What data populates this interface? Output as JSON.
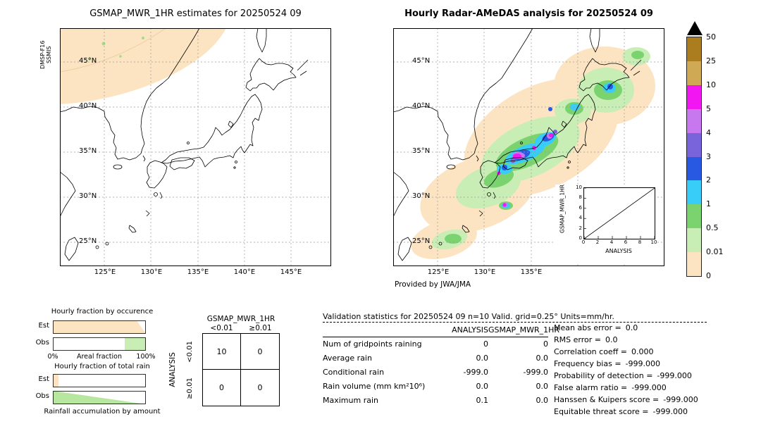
{
  "left_map": {
    "title": "GSMAP_MWR_1HR estimates for 20250524 09",
    "satellite": "DMSP-F16",
    "sensor": "SSMIS",
    "lat_labels": [
      "45°N",
      "40°N",
      "35°N",
      "30°N",
      "25°N"
    ],
    "lon_labels": [
      "125°E",
      "130°E",
      "135°E",
      "140°E",
      "145°E"
    ]
  },
  "right_map": {
    "title": "Hourly Radar-AMeDAS analysis for 20250524 09",
    "credit": "Provided by JWA/JMA",
    "lat_labels": [
      "45°N",
      "40°N",
      "35°N",
      "30°N",
      "25°N"
    ],
    "lon_labels": [
      "125°E",
      "130°E",
      "135°E"
    ],
    "inset": {
      "ylabel": "GSMAP_MWR_1HR",
      "xlabel": "ANALYSIS",
      "tick_labels": [
        "0",
        "2",
        "4",
        "6",
        "8",
        "10"
      ]
    }
  },
  "colorbar": {
    "tick_labels": [
      "50",
      "25",
      "10",
      "5",
      "4",
      "3",
      "2",
      "1",
      "0.5",
      "0.01",
      "0"
    ],
    "segment_colors": [
      "#ab7d1f",
      "#cfa954",
      "#f217f2",
      "#c878ee",
      "#7a64dc",
      "#2759e3",
      "#37cdf8",
      "#7bd36f",
      "#c8eeb6",
      "#fce4c2"
    ],
    "overflow_color": "#000000"
  },
  "fractions": {
    "occurrence_title": "Hourly fraction by occurence",
    "total_title": "Hourly fraction of total rain",
    "accumulation_title": "Rainfall accumulation by amount",
    "row_labels": [
      "Est",
      "Obs"
    ],
    "axis_min": "0%",
    "axis_label": "Areal fraction",
    "axis_max": "100%"
  },
  "contingency": {
    "title": "GSMAP_MWR_1HR",
    "side_label": "ANALYSIS",
    "col_labels": [
      "<0.01",
      "≥0.01"
    ],
    "row_labels": [
      "<0.01",
      "≥0.01"
    ],
    "cells": [
      [
        "10",
        "0"
      ],
      [
        "0",
        "0"
      ]
    ]
  },
  "stats": {
    "title": "Validation statistics for 20250524 09  n=10 Valid. grid=0.25° Units=mm/hr.",
    "col_headers": [
      "ANALYSIS",
      "GSMAP_MWR_1HR"
    ],
    "rows": [
      {
        "label": "Num of gridpoints raining",
        "analysis": "0",
        "gsmap": "0"
      },
      {
        "label": "Average rain",
        "analysis": "0.0",
        "gsmap": "0.0"
      },
      {
        "label": "Conditional rain",
        "analysis": "-999.0",
        "gsmap": "-999.0"
      },
      {
        "label": "Rain volume (mm km²10⁶)",
        "analysis": "0.0",
        "gsmap": "0.0"
      },
      {
        "label": "Maximum rain",
        "analysis": "0.1",
        "gsmap": "0.0"
      }
    ],
    "metrics": [
      {
        "label": "Mean abs error =",
        "value": "0.0"
      },
      {
        "label": "RMS error =",
        "value": "0.0"
      },
      {
        "label": "Correlation coeff =",
        "value": "0.000"
      },
      {
        "label": "Frequency bias =",
        "value": "-999.000"
      },
      {
        "label": "Probability of detection =",
        "value": "-999.000"
      },
      {
        "label": "False alarm ratio =",
        "value": "-999.000"
      },
      {
        "label": "Hanssen & Kuipers score =",
        "value": "-999.000"
      },
      {
        "label": "Equitable threat score =",
        "value": "-999.000"
      }
    ]
  },
  "chart_data": [
    {
      "type": "heatmap",
      "title": "GSMAP_MWR_1HR estimates for 20250524 09",
      "xticks": [
        "125°E",
        "130°E",
        "135°E",
        "140°E",
        "145°E"
      ],
      "yticks": [
        "45°N",
        "40°N",
        "35°N",
        "30°N",
        "25°N"
      ],
      "legend_units": "mm/hr",
      "legend_levels": [
        0,
        0.01,
        0.5,
        1,
        2,
        3,
        4,
        5,
        10,
        25,
        50
      ],
      "description": "DMSP-F16 SSMIS satellite swath covers only the north-west corner of the domain with 0-0.01 mm/hr (pale tan) values and a few light-rain specks; the rest of the map has no coverage."
    },
    {
      "type": "heatmap",
      "title": "Hourly Radar-AMeDAS analysis for 20250524 09",
      "xticks": [
        "125°E",
        "130°E",
        "135°E"
      ],
      "yticks": [
        "45°N",
        "40°N",
        "35°N",
        "30°N",
        "25°N"
      ],
      "legend_units": "mm/hr",
      "description": "Radar-AMeDAS rain analysis: broad light rain (0.01-1 mm/hr greens) in a band from the Ryukyu islands over western/central Japan to Hokkaido, with embedded heavier cells of 2-25 mm/hr (cyan, blue, violet, magenta) over the Seto Inland Sea region, Kinki, northern Honshu and near Amami."
    },
    {
      "type": "scatter",
      "title": "GSMAP_MWR_1HR vs ANALYSIS inset",
      "xlabel": "ANALYSIS",
      "ylabel": "GSMAP_MWR_1HR",
      "xlim": [
        0,
        10
      ],
      "ylim": [
        0,
        10
      ],
      "xticks": [
        0,
        2,
        4,
        6,
        8,
        10
      ],
      "yticks": [
        0,
        2,
        4,
        6,
        8,
        10
      ],
      "points": [],
      "reference_line": "y = x diagonal"
    },
    {
      "type": "table",
      "title": "Contingency table GSMAP_MWR_1HR vs ANALYSIS",
      "columns": [
        "<0.01",
        "≥0.01"
      ],
      "rows": [
        "<0.01",
        "≥0.01"
      ],
      "values": [
        [
          10,
          0
        ],
        [
          0,
          0
        ]
      ]
    },
    {
      "type": "table",
      "title": "Validation statistics for 20250524 09 n=10 grid=0.25° Units=mm/hr",
      "columns": [
        "ANALYSIS",
        "GSMAP_MWR_1HR"
      ],
      "rows": [
        [
          "Num of gridpoints raining",
          0,
          0
        ],
        [
          "Average rain",
          0.0,
          0.0
        ],
        [
          "Conditional rain",
          -999.0,
          -999.0
        ],
        [
          "Rain volume (mm km²10⁶)",
          0.0,
          0.0
        ],
        [
          "Maximum rain",
          0.1,
          0.0
        ]
      ],
      "metrics": {
        "Mean abs error": 0.0,
        "RMS error": 0.0,
        "Correlation coeff": 0.0,
        "Frequency bias": -999.0,
        "Probability of detection": -999.0,
        "False alarm ratio": -999.0,
        "Hanssen & Kuipers score": -999.0,
        "Equitable threat score": -999.0
      }
    },
    {
      "type": "bar",
      "title": "Hourly fraction by occurence",
      "categories": [
        "Est",
        "Obs"
      ],
      "xlabel": "Areal fraction",
      "xlim_labels": [
        "0%",
        "100%"
      ],
      "series_note": "Est: ~100% of swath area in 0-0.01 mm/hr class (tan, small white wedge at right); Obs: ~78% dry (white) and ~22% light rain (green)."
    },
    {
      "type": "bar",
      "title": "Hourly fraction of total rain",
      "categories": [
        "Est",
        "Obs"
      ],
      "series_note": "Est: small tan fraction at left (~5%); Obs: green wedge tapering from full height at left to zero at right."
    }
  ]
}
